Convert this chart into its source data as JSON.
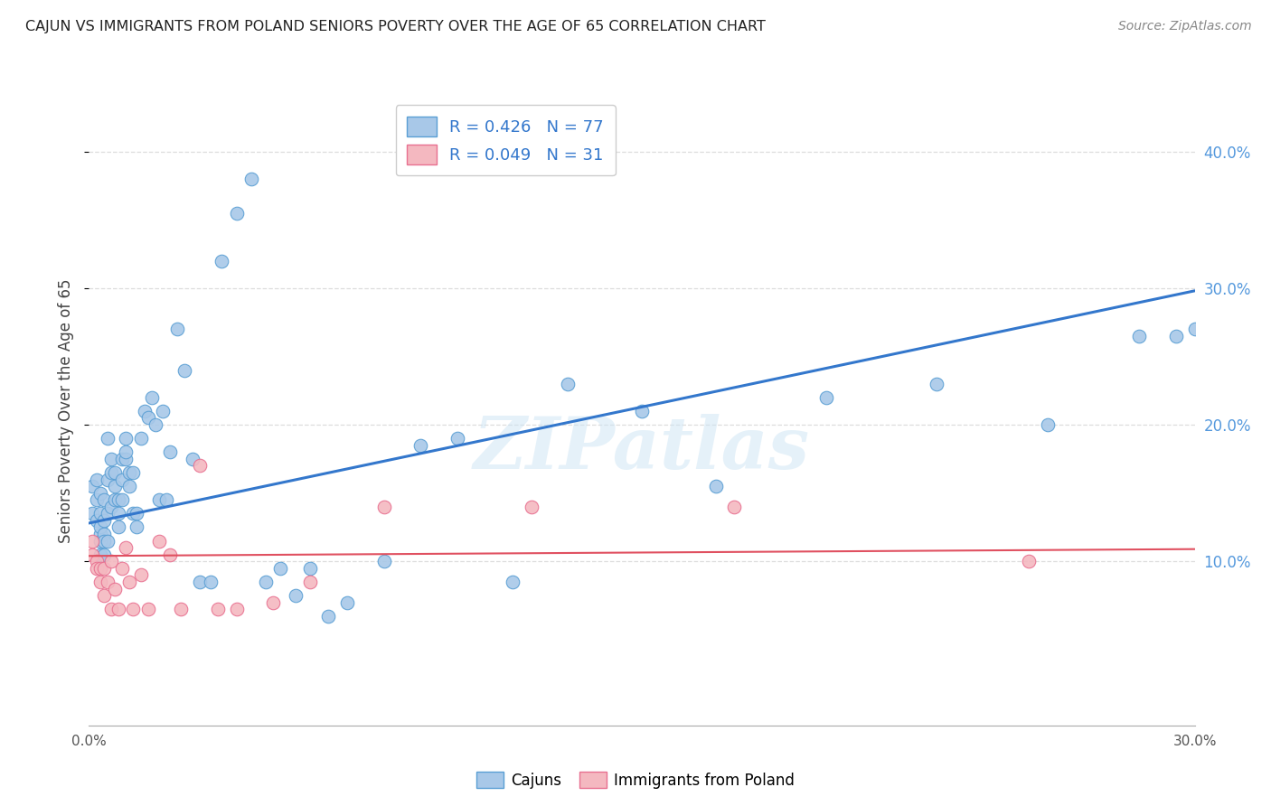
{
  "title": "CAJUN VS IMMIGRANTS FROM POLAND SENIORS POVERTY OVER THE AGE OF 65 CORRELATION CHART",
  "source": "Source: ZipAtlas.com",
  "ylabel": "Seniors Poverty Over the Age of 65",
  "xlim": [
    0.0,
    0.3
  ],
  "ylim": [
    -0.02,
    0.44
  ],
  "yticks": [
    0.1,
    0.2,
    0.3,
    0.4
  ],
  "ytick_labels": [
    "10.0%",
    "20.0%",
    "30.0%",
    "40.0%"
  ],
  "legend_cajun_r": "R = 0.426",
  "legend_cajun_n": "N = 77",
  "legend_poland_r": "R = 0.049",
  "legend_poland_n": "N = 31",
  "cajun_scatter_color": "#a8c8e8",
  "cajun_edge_color": "#5a9fd4",
  "poland_scatter_color": "#f4b8c0",
  "poland_edge_color": "#e87090",
  "line_cajun_color": "#3377cc",
  "line_poland_color": "#e05060",
  "watermark": "ZIPatlas",
  "background_color": "#ffffff",
  "grid_color": "#dddddd",
  "cajun_x": [
    0.001,
    0.001,
    0.002,
    0.002,
    0.002,
    0.003,
    0.003,
    0.003,
    0.003,
    0.003,
    0.003,
    0.004,
    0.004,
    0.004,
    0.004,
    0.004,
    0.005,
    0.005,
    0.005,
    0.005,
    0.006,
    0.006,
    0.006,
    0.007,
    0.007,
    0.007,
    0.008,
    0.008,
    0.008,
    0.009,
    0.009,
    0.009,
    0.01,
    0.01,
    0.01,
    0.011,
    0.011,
    0.012,
    0.012,
    0.013,
    0.013,
    0.014,
    0.015,
    0.016,
    0.017,
    0.018,
    0.019,
    0.02,
    0.021,
    0.022,
    0.024,
    0.026,
    0.028,
    0.03,
    0.033,
    0.036,
    0.04,
    0.044,
    0.048,
    0.052,
    0.056,
    0.06,
    0.065,
    0.07,
    0.08,
    0.09,
    0.1,
    0.115,
    0.13,
    0.15,
    0.17,
    0.2,
    0.23,
    0.26,
    0.285,
    0.295,
    0.3
  ],
  "cajun_y": [
    0.135,
    0.155,
    0.145,
    0.13,
    0.16,
    0.12,
    0.125,
    0.115,
    0.105,
    0.135,
    0.15,
    0.12,
    0.115,
    0.105,
    0.145,
    0.13,
    0.19,
    0.135,
    0.115,
    0.16,
    0.175,
    0.14,
    0.165,
    0.165,
    0.155,
    0.145,
    0.145,
    0.135,
    0.125,
    0.175,
    0.16,
    0.145,
    0.19,
    0.175,
    0.18,
    0.155,
    0.165,
    0.165,
    0.135,
    0.135,
    0.125,
    0.19,
    0.21,
    0.205,
    0.22,
    0.2,
    0.145,
    0.21,
    0.145,
    0.18,
    0.27,
    0.24,
    0.175,
    0.085,
    0.085,
    0.32,
    0.355,
    0.38,
    0.085,
    0.095,
    0.075,
    0.095,
    0.06,
    0.07,
    0.1,
    0.185,
    0.19,
    0.085,
    0.23,
    0.21,
    0.155,
    0.22,
    0.23,
    0.2,
    0.265,
    0.265,
    0.27
  ],
  "poland_x": [
    0.001,
    0.001,
    0.002,
    0.002,
    0.003,
    0.003,
    0.004,
    0.004,
    0.005,
    0.006,
    0.006,
    0.007,
    0.008,
    0.009,
    0.01,
    0.011,
    0.012,
    0.014,
    0.016,
    0.019,
    0.022,
    0.025,
    0.03,
    0.035,
    0.04,
    0.05,
    0.06,
    0.08,
    0.12,
    0.175,
    0.255
  ],
  "poland_y": [
    0.115,
    0.105,
    0.1,
    0.095,
    0.085,
    0.095,
    0.095,
    0.075,
    0.085,
    0.1,
    0.065,
    0.08,
    0.065,
    0.095,
    0.11,
    0.085,
    0.065,
    0.09,
    0.065,
    0.115,
    0.105,
    0.065,
    0.17,
    0.065,
    0.065,
    0.07,
    0.085,
    0.14,
    0.14,
    0.14,
    0.1
  ],
  "cajun_line_x0": 0.0,
  "cajun_line_x1": 0.3,
  "cajun_line_y0": 0.128,
  "cajun_line_y1": 0.298,
  "poland_line_x0": 0.0,
  "poland_line_x1": 0.3,
  "poland_line_y0": 0.104,
  "poland_line_y1": 0.109
}
